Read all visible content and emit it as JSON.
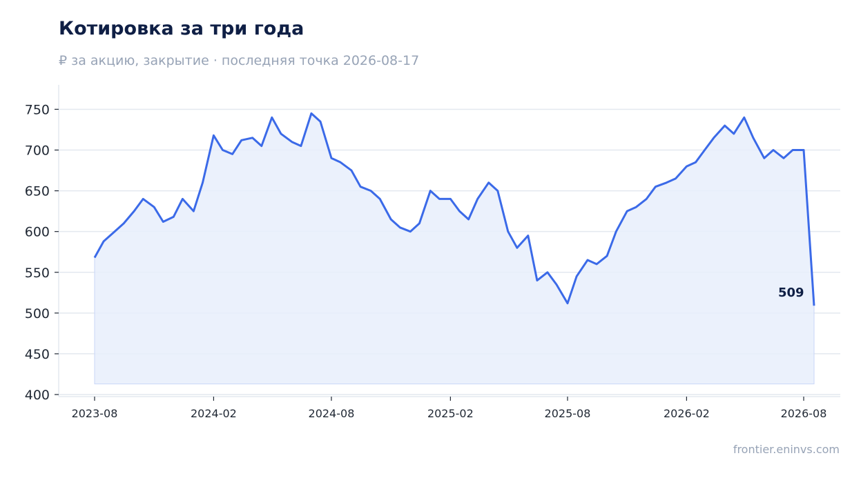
{
  "header": {
    "title": "Котировка за три года",
    "subtitle": "₽ за акцию, закрытие · последняя точка 2026-08-17"
  },
  "footer": {
    "source": "frontier.eninvs.com"
  },
  "colors": {
    "line": "#3b6ae8",
    "fill": "#e8eefc",
    "grid": "#e3e8ef",
    "title": "#0f1f45",
    "muted": "#97a3b6"
  },
  "chart_data": {
    "type": "area",
    "title": "Котировка за три года",
    "subtitle": "₽ за акцию, закрытие · последняя точка 2026-08-17",
    "xlabel": "",
    "ylabel": "",
    "ylim": [
      400,
      780
    ],
    "yticks": [
      400,
      450,
      500,
      550,
      600,
      650,
      700,
      750
    ],
    "xticks": [
      "2023-08",
      "2024-02",
      "2024-08",
      "2025-02",
      "2025-08",
      "2026-02",
      "2026-08"
    ],
    "grid": true,
    "last_label": "509",
    "series": [
      {
        "x": [
          "2023-08-01",
          "2023-08-15",
          "2023-09-01",
          "2023-09-15",
          "2023-10-01",
          "2023-10-15",
          "2023-11-01",
          "2023-11-15",
          "2023-12-01",
          "2023-12-15",
          "2024-01-01",
          "2024-01-15",
          "2024-02-01",
          "2024-02-15",
          "2024-03-01",
          "2024-03-15",
          "2024-04-01",
          "2024-04-15",
          "2024-05-01",
          "2024-05-15",
          "2024-06-01",
          "2024-06-15",
          "2024-07-01",
          "2024-07-15",
          "2024-08-01",
          "2024-08-15",
          "2024-09-01",
          "2024-09-15",
          "2024-10-01",
          "2024-10-15",
          "2024-11-01",
          "2024-11-15",
          "2024-12-01",
          "2024-12-15",
          "2025-01-01",
          "2025-01-15",
          "2025-02-01",
          "2025-02-15",
          "2025-03-01",
          "2025-03-15",
          "2025-04-01",
          "2025-04-15",
          "2025-05-01",
          "2025-05-15",
          "2025-06-01",
          "2025-06-15",
          "2025-07-01",
          "2025-07-15",
          "2025-08-01",
          "2025-08-15",
          "2025-09-01",
          "2025-09-15",
          "2025-10-01",
          "2025-10-15",
          "2025-11-01",
          "2025-11-15",
          "2025-12-01",
          "2025-12-15",
          "2026-01-01",
          "2026-01-15",
          "2026-02-01",
          "2026-02-15",
          "2026-03-01",
          "2026-03-15",
          "2026-04-01",
          "2026-04-15",
          "2026-05-01",
          "2026-05-15",
          "2026-06-01",
          "2026-06-15",
          "2026-07-01",
          "2026-07-15",
          "2026-08-01",
          "2026-08-17"
        ],
        "values": [
          568,
          588,
          600,
          610,
          625,
          640,
          630,
          612,
          618,
          640,
          625,
          660,
          718,
          700,
          695,
          712,
          715,
          705,
          740,
          720,
          710,
          705,
          745,
          735,
          690,
          685,
          675,
          655,
          650,
          640,
          615,
          605,
          600,
          610,
          650,
          640,
          640,
          625,
          615,
          640,
          660,
          650,
          600,
          580,
          595,
          540,
          550,
          535,
          512,
          545,
          565,
          560,
          570,
          600,
          625,
          630,
          640,
          655,
          660,
          665,
          680,
          685,
          700,
          715,
          730,
          720,
          740,
          715,
          690,
          700,
          690,
          700,
          700,
          509
        ]
      }
    ]
  }
}
